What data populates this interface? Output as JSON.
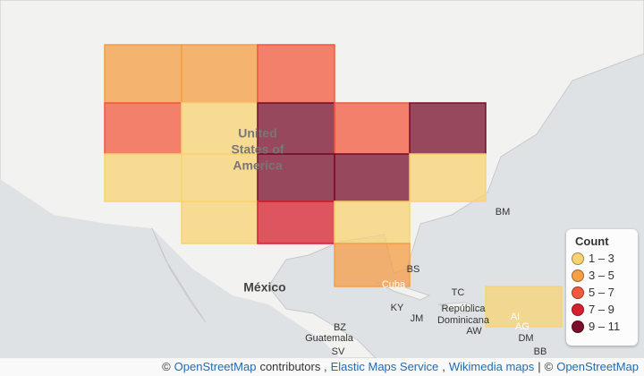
{
  "map_labels": [
    "United",
    "States of",
    "America",
    "México",
    "BM",
    "BS",
    "Cuba",
    "TC",
    "KY",
    "JM",
    "República",
    "Dominicana",
    "AI",
    "AG",
    "DM",
    "BZ",
    "Guatemala",
    "SV",
    "AW",
    "BB"
  ],
  "legend": {
    "title": "Count",
    "items": [
      {
        "label": "1 – 3",
        "color": "#f8d374"
      },
      {
        "label": "3 – 5",
        "color": "#f59e45"
      },
      {
        "label": "5 – 7",
        "color": "#f2593f"
      },
      {
        "label": "7 – 9",
        "color": "#d4202f"
      },
      {
        "label": "9 – 11",
        "color": "#7a0f2c"
      }
    ]
  },
  "attribution": {
    "parts": [
      {
        "text": "©",
        "link": false
      },
      {
        "text": "OpenStreetMap",
        "link": true
      },
      {
        "text": "contributors ,",
        "link": false
      },
      {
        "text": "Elastic Maps Service",
        "link": true
      },
      {
        "text": ",",
        "link": false
      },
      {
        "text": "Wikimedia maps",
        "link": true
      },
      {
        "text": "|",
        "link": false
      },
      {
        "text": "©",
        "link": false
      },
      {
        "text": "OpenStreetMap",
        "link": true
      }
    ]
  }
}
